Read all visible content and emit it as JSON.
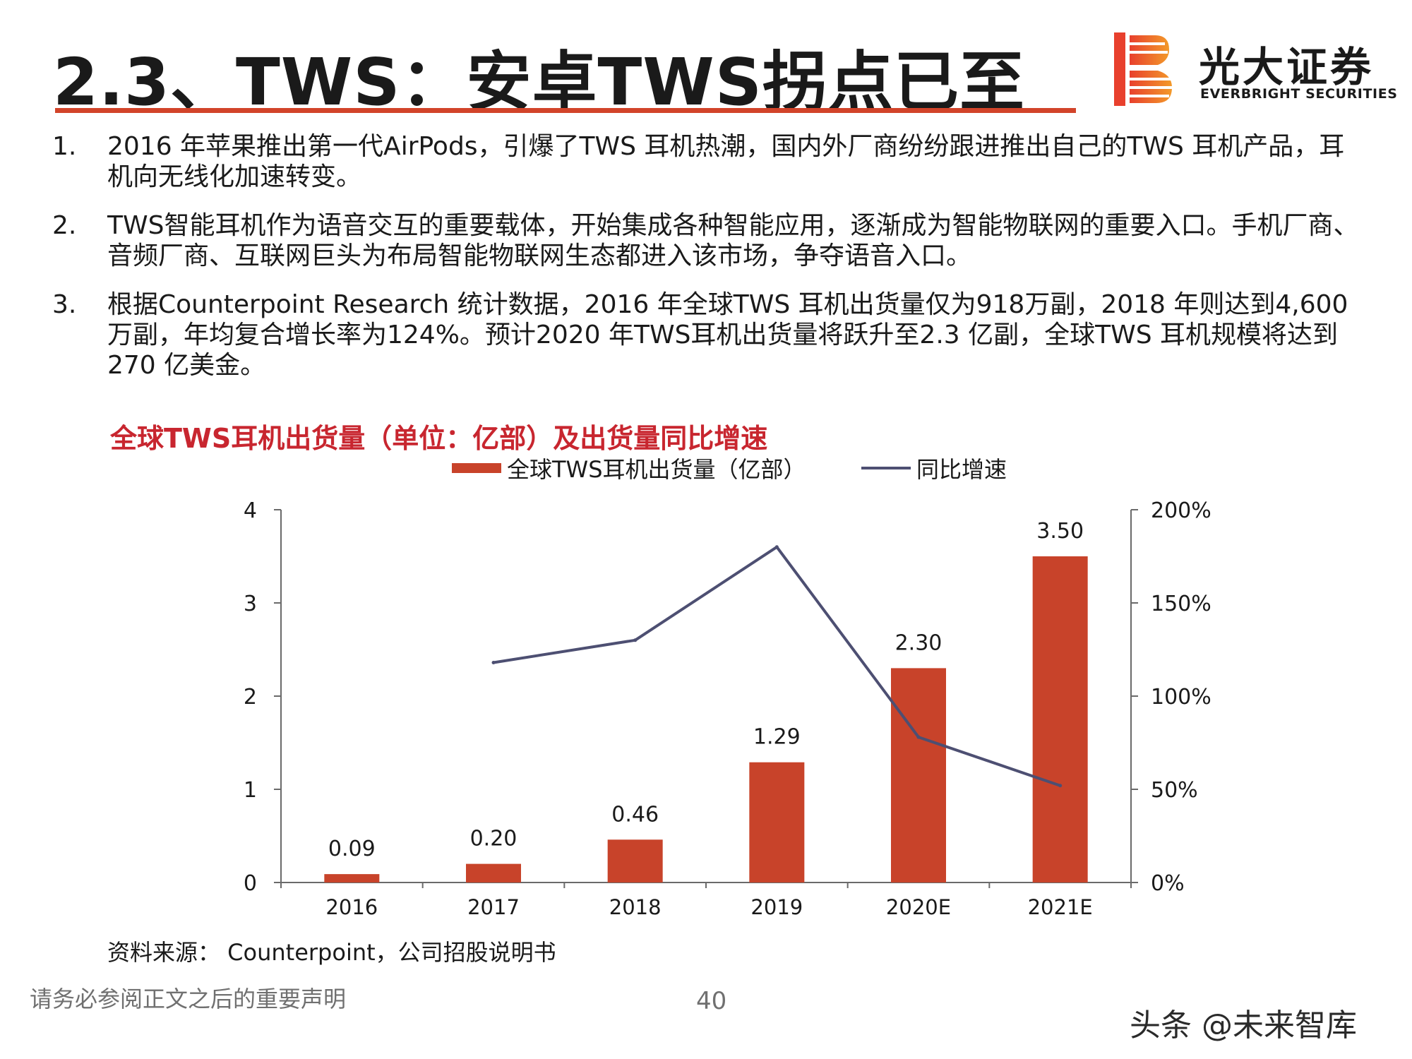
{
  "header": {
    "title": "2.3、TWS：安卓TWS拐点已至",
    "brand_colors": {
      "accent": "#d2442a",
      "title_text": "#1a1a1a"
    }
  },
  "logo": {
    "name_cn": "光大证券",
    "name_en": "EVERBRIGHT SECURITIES",
    "mark_colors": [
      "#e8402d",
      "#f39a2a"
    ]
  },
  "points": [
    {
      "num": "1.",
      "text": "2016 年苹果推出第一代AirPods，引爆了TWS 耳机热潮，国内外厂商纷纷跟进推出自己的TWS 耳机产品，耳机向无线化加速转变。"
    },
    {
      "num": "2.",
      "text": "TWS智能耳机作为语音交互的重要载体，开始集成各种智能应用，逐渐成为智能物联网的重要入口。手机厂商、音频厂商、互联网巨头为布局智能物联网生态都进入该市场，争夺语音入口。"
    },
    {
      "num": "3.",
      "text": "根据Counterpoint Research 统计数据，2016 年全球TWS 耳机出货量仅为918万副，2018 年则达到4,600 万副，年均复合增长率为124%。预计2020 年TWS耳机出货量将跃升至2.3 亿副，全球TWS 耳机规模将达到270 亿美金。"
    }
  ],
  "chart_data": {
    "type": "bar",
    "title": "全球TWS耳机出货量（单位：亿部）及出货量同比增速",
    "categories": [
      "2016",
      "2017",
      "2018",
      "2019",
      "2020E",
      "2021E"
    ],
    "series": [
      {
        "name": "全球TWS耳机出货量（亿部）",
        "kind": "bar",
        "axis": "left",
        "color": "#c8432a",
        "values": [
          0.09,
          0.2,
          0.46,
          1.29,
          2.3,
          3.5
        ],
        "labels": [
          "0.09",
          "0.20",
          "0.46",
          "1.29",
          "2.30",
          "3.50"
        ]
      },
      {
        "name": "同比增速",
        "kind": "line",
        "axis": "right",
        "color": "#4d4f72",
        "values": [
          null,
          118,
          130,
          180,
          78,
          52
        ]
      }
    ],
    "y_left": {
      "lim": [
        0,
        4
      ],
      "ticks": [
        "0",
        "1",
        "2",
        "3",
        "4"
      ]
    },
    "y_right": {
      "lim": [
        0,
        200
      ],
      "ticks": [
        "0%",
        "50%",
        "100%",
        "150%",
        "200%"
      ]
    },
    "legend_position": "top",
    "grid": false
  },
  "source": "资料来源： Counterpoint，公司招股说明书",
  "footer": {
    "disclaimer": "请务必参阅正文之后的重要声明",
    "page_number": "40",
    "watermark": "头条 @未来智库"
  }
}
